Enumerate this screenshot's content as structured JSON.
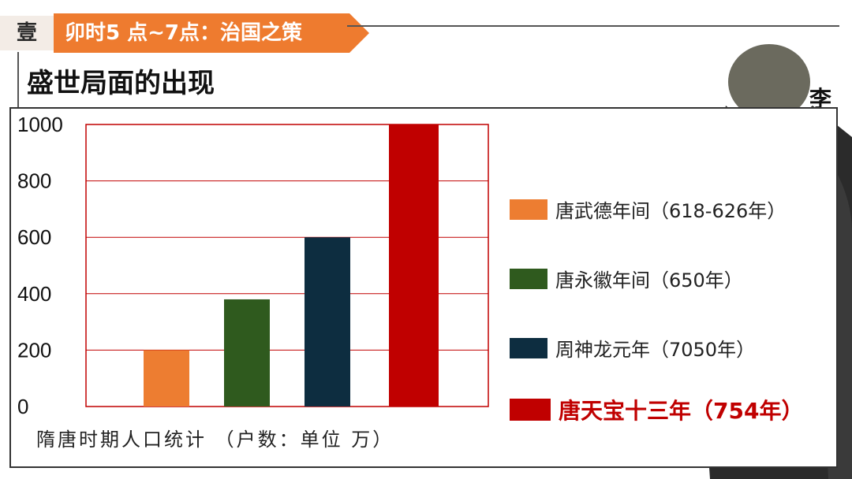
{
  "header": {
    "number": "壹",
    "title": "卯时5 点~7点：治国之策",
    "section_title": "盛世局面的出现",
    "side_char": "李",
    "accent_color": "#ee7b2f"
  },
  "chart_data": {
    "type": "bar",
    "categories": [
      "唐武德年间（618-626年）",
      "唐永徽年间（650年）",
      "周神龙元年（7050年）",
      "唐天宝十三年（754年）"
    ],
    "values": [
      200,
      380,
      600,
      1000
    ],
    "colors": [
      "#ed7d31",
      "#2f5a1e",
      "#0d2d40",
      "#c00000"
    ],
    "yticks": [
      0,
      200,
      400,
      600,
      800,
      1000
    ],
    "ylim": [
      0,
      1000
    ],
    "grid": true,
    "legend_position": "right",
    "caption": "隋唐时期人口统计 （户数：单位 万）"
  }
}
